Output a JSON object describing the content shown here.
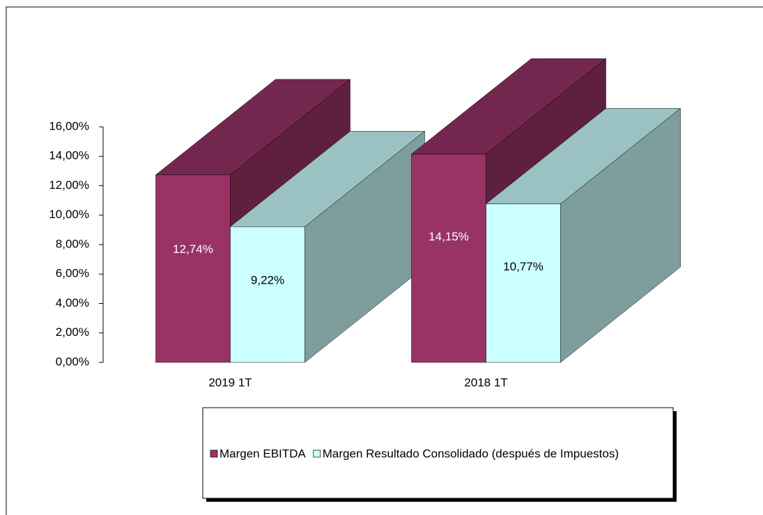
{
  "chart_data": {
    "type": "bar3d",
    "categories": [
      "2019 1T",
      "2018 1T"
    ],
    "series": [
      {
        "name": "Margen EBITDA",
        "color": "#993366",
        "values": [
          12.74,
          14.15
        ],
        "value_labels": [
          "12,74%",
          "14,15%"
        ]
      },
      {
        "name": "Margen Resultado Consolidado (después de Impuestos)",
        "color": "#ccffff",
        "values": [
          9.22,
          10.77
        ],
        "value_labels": [
          "9,22%",
          "10,77%"
        ]
      }
    ],
    "ylim": [
      0,
      16
    ],
    "yticks": [
      {
        "value": 0,
        "label": "0,00%"
      },
      {
        "value": 2,
        "label": "2,00%"
      },
      {
        "value": 4,
        "label": "4,00%"
      },
      {
        "value": 6,
        "label": "6,00%"
      },
      {
        "value": 8,
        "label": "8,00%"
      },
      {
        "value": 10,
        "label": "10,00%"
      },
      {
        "value": 12,
        "label": "12,00%"
      },
      {
        "value": 14,
        "label": "14,00%"
      },
      {
        "value": 16,
        "label": "16,00%"
      }
    ],
    "legend": "bottom"
  }
}
